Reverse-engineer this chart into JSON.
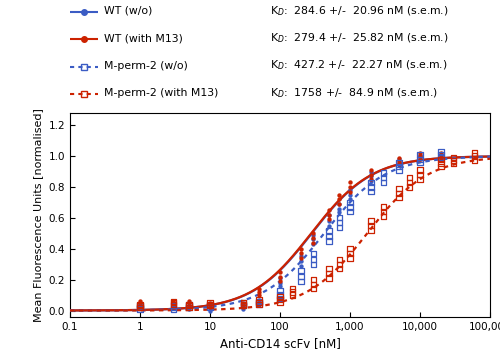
{
  "xlabel": "Anti-CD14 scFv [nM]",
  "ylabel": "Mean Fluorescence Units [normalised]",
  "xlim": [
    0.1,
    100000
  ],
  "ylim": [
    -0.04,
    1.28
  ],
  "yticks": [
    0.0,
    0.2,
    0.4,
    0.6,
    0.8,
    1.0,
    1.2
  ],
  "KD_wt_wo": 284.6,
  "KD_wt_m13": 279.4,
  "KD_mperm2_wo": 427.2,
  "KD_mperm2_m13": 1758.0,
  "color_blue": "#3B5CC4",
  "color_red": "#CC2200",
  "legend_entries": [
    "WT (w/o)",
    "WT (with M13)",
    "M-perm-2 (w/o)",
    "M-perm-2 (with M13)"
  ],
  "kd_texts": [
    "K$_D$:  284.6 +/-  20.96 nM (s.e.m.)",
    "K$_D$:  279.4 +/-  25.82 nM (s.e.m.)",
    "K$_D$:  427.2 +/-  22.27 nM (s.e.m.)",
    "K$_D$:  1758 +/-  84.9 nM (s.e.m.)"
  ],
  "scatter_wt_wo": [
    [
      1.0,
      0.035
    ],
    [
      1.0,
      0.025
    ],
    [
      1.0,
      0.04
    ],
    [
      3.0,
      0.04
    ],
    [
      3.0,
      0.03
    ],
    [
      3.0,
      0.05
    ],
    [
      5.0,
      0.02
    ],
    [
      5.0,
      0.01
    ],
    [
      5.0,
      0.03
    ],
    [
      10.0,
      0.01
    ],
    [
      10.0,
      0.0
    ],
    [
      10.0,
      0.02
    ],
    [
      30.0,
      0.02
    ],
    [
      30.0,
      0.01
    ],
    [
      30.0,
      0.03
    ],
    [
      50.0,
      0.05
    ],
    [
      50.0,
      0.04
    ],
    [
      50.0,
      0.07
    ],
    [
      100.0,
      0.18
    ],
    [
      100.0,
      0.16
    ],
    [
      100.0,
      0.21
    ],
    [
      200.0,
      0.32
    ],
    [
      200.0,
      0.29
    ],
    [
      200.0,
      0.35
    ],
    [
      300.0,
      0.46
    ],
    [
      300.0,
      0.43
    ],
    [
      300.0,
      0.49
    ],
    [
      500.0,
      0.58
    ],
    [
      500.0,
      0.55
    ],
    [
      500.0,
      0.62
    ],
    [
      700.0,
      0.66
    ],
    [
      700.0,
      0.64
    ],
    [
      700.0,
      0.69
    ],
    [
      1000.0,
      0.75
    ],
    [
      1000.0,
      0.72
    ],
    [
      1000.0,
      0.78
    ],
    [
      2000.0,
      0.87
    ],
    [
      2000.0,
      0.84
    ],
    [
      2000.0,
      0.9
    ],
    [
      5000.0,
      0.96
    ],
    [
      5000.0,
      0.94
    ],
    [
      5000.0,
      0.98
    ],
    [
      10000.0,
      1.0
    ],
    [
      10000.0,
      0.99
    ],
    [
      10000.0,
      1.01
    ],
    [
      20000.0,
      1.0
    ],
    [
      20000.0,
      0.99
    ],
    [
      20000.0,
      1.01
    ]
  ],
  "scatter_wt_m13": [
    [
      1.0,
      0.05
    ],
    [
      1.0,
      0.03
    ],
    [
      1.0,
      0.06
    ],
    [
      3.0,
      0.05
    ],
    [
      3.0,
      0.03
    ],
    [
      3.0,
      0.06
    ],
    [
      5.0,
      0.05
    ],
    [
      5.0,
      0.03
    ],
    [
      5.0,
      0.06
    ],
    [
      10.0,
      0.04
    ],
    [
      10.0,
      0.02
    ],
    [
      10.0,
      0.05
    ],
    [
      30.0,
      0.04
    ],
    [
      30.0,
      0.02
    ],
    [
      30.0,
      0.05
    ],
    [
      50.0,
      0.12
    ],
    [
      50.0,
      0.1
    ],
    [
      50.0,
      0.14
    ],
    [
      100.0,
      0.22
    ],
    [
      100.0,
      0.19
    ],
    [
      100.0,
      0.25
    ],
    [
      200.0,
      0.37
    ],
    [
      200.0,
      0.34
    ],
    [
      200.0,
      0.4
    ],
    [
      300.0,
      0.47
    ],
    [
      300.0,
      0.44
    ],
    [
      300.0,
      0.5
    ],
    [
      500.0,
      0.62
    ],
    [
      500.0,
      0.59
    ],
    [
      500.0,
      0.65
    ],
    [
      700.0,
      0.72
    ],
    [
      700.0,
      0.69
    ],
    [
      700.0,
      0.75
    ],
    [
      1000.0,
      0.8
    ],
    [
      1000.0,
      0.77
    ],
    [
      1000.0,
      0.83
    ],
    [
      2000.0,
      0.88
    ],
    [
      2000.0,
      0.85
    ],
    [
      2000.0,
      0.91
    ],
    [
      5000.0,
      0.97
    ],
    [
      5000.0,
      0.95
    ],
    [
      5000.0,
      0.99
    ],
    [
      10000.0,
      1.0
    ],
    [
      10000.0,
      0.98
    ],
    [
      10000.0,
      1.02
    ],
    [
      20000.0,
      1.01
    ],
    [
      20000.0,
      0.99
    ],
    [
      20000.0,
      1.02
    ]
  ],
  "scatter_mperm2_wo": [
    [
      1.0,
      0.02
    ],
    [
      1.0,
      0.01
    ],
    [
      1.0,
      0.03
    ],
    [
      3.0,
      0.02
    ],
    [
      3.0,
      0.01
    ],
    [
      3.0,
      0.03
    ],
    [
      5.0,
      0.03
    ],
    [
      5.0,
      0.02
    ],
    [
      5.0,
      0.04
    ],
    [
      10.0,
      0.03
    ],
    [
      10.0,
      0.02
    ],
    [
      10.0,
      0.04
    ],
    [
      30.0,
      0.04
    ],
    [
      30.0,
      0.03
    ],
    [
      30.0,
      0.05
    ],
    [
      50.0,
      0.05
    ],
    [
      50.0,
      0.04
    ],
    [
      50.0,
      0.06
    ],
    [
      100.0,
      0.1
    ],
    [
      100.0,
      0.08
    ],
    [
      100.0,
      0.13
    ],
    [
      200.0,
      0.22
    ],
    [
      200.0,
      0.19
    ],
    [
      200.0,
      0.26
    ],
    [
      300.0,
      0.33
    ],
    [
      300.0,
      0.3
    ],
    [
      300.0,
      0.37
    ],
    [
      500.0,
      0.48
    ],
    [
      500.0,
      0.45
    ],
    [
      500.0,
      0.52
    ],
    [
      700.0,
      0.57
    ],
    [
      700.0,
      0.54
    ],
    [
      700.0,
      0.6
    ],
    [
      1000.0,
      0.67
    ],
    [
      1000.0,
      0.64
    ],
    [
      1000.0,
      0.7
    ],
    [
      2000.0,
      0.8
    ],
    [
      2000.0,
      0.77
    ],
    [
      2000.0,
      0.83
    ],
    [
      3000.0,
      0.86
    ],
    [
      3000.0,
      0.83
    ],
    [
      3000.0,
      0.89
    ],
    [
      5000.0,
      0.93
    ],
    [
      5000.0,
      0.91
    ],
    [
      5000.0,
      0.96
    ],
    [
      10000.0,
      0.98
    ],
    [
      10000.0,
      0.96
    ],
    [
      10000.0,
      1.01
    ],
    [
      20000.0,
      1.01
    ],
    [
      20000.0,
      0.99
    ],
    [
      20000.0,
      1.03
    ]
  ],
  "scatter_mperm2_m13": [
    [
      1.0,
      0.03
    ],
    [
      1.0,
      0.02
    ],
    [
      1.0,
      0.04
    ],
    [
      3.0,
      0.05
    ],
    [
      3.0,
      0.04
    ],
    [
      3.0,
      0.06
    ],
    [
      5.0,
      0.03
    ],
    [
      5.0,
      0.02
    ],
    [
      5.0,
      0.04
    ],
    [
      10.0,
      0.04
    ],
    [
      10.0,
      0.03
    ],
    [
      10.0,
      0.05
    ],
    [
      30.0,
      0.04
    ],
    [
      30.0,
      0.03
    ],
    [
      30.0,
      0.05
    ],
    [
      50.0,
      0.05
    ],
    [
      50.0,
      0.04
    ],
    [
      50.0,
      0.07
    ],
    [
      100.0,
      0.07
    ],
    [
      100.0,
      0.05
    ],
    [
      100.0,
      0.09
    ],
    [
      150.0,
      0.12
    ],
    [
      150.0,
      0.1
    ],
    [
      150.0,
      0.14
    ],
    [
      300.0,
      0.17
    ],
    [
      300.0,
      0.14
    ],
    [
      300.0,
      0.2
    ],
    [
      500.0,
      0.24
    ],
    [
      500.0,
      0.21
    ],
    [
      500.0,
      0.27
    ],
    [
      700.0,
      0.3
    ],
    [
      700.0,
      0.27
    ],
    [
      700.0,
      0.33
    ],
    [
      1000.0,
      0.37
    ],
    [
      1000.0,
      0.34
    ],
    [
      1000.0,
      0.4
    ],
    [
      2000.0,
      0.55
    ],
    [
      2000.0,
      0.52
    ],
    [
      2000.0,
      0.58
    ],
    [
      3000.0,
      0.64
    ],
    [
      3000.0,
      0.61
    ],
    [
      3000.0,
      0.67
    ],
    [
      5000.0,
      0.76
    ],
    [
      5000.0,
      0.73
    ],
    [
      5000.0,
      0.79
    ],
    [
      7000.0,
      0.83
    ],
    [
      7000.0,
      0.8
    ],
    [
      7000.0,
      0.86
    ],
    [
      10000.0,
      0.88
    ],
    [
      10000.0,
      0.85
    ],
    [
      10000.0,
      0.91
    ],
    [
      20000.0,
      0.95
    ],
    [
      20000.0,
      0.93
    ],
    [
      20000.0,
      0.98
    ],
    [
      30000.0,
      0.97
    ],
    [
      30000.0,
      0.95
    ],
    [
      30000.0,
      0.99
    ],
    [
      60000.0,
      1.0
    ],
    [
      60000.0,
      0.97
    ],
    [
      60000.0,
      1.02
    ]
  ]
}
